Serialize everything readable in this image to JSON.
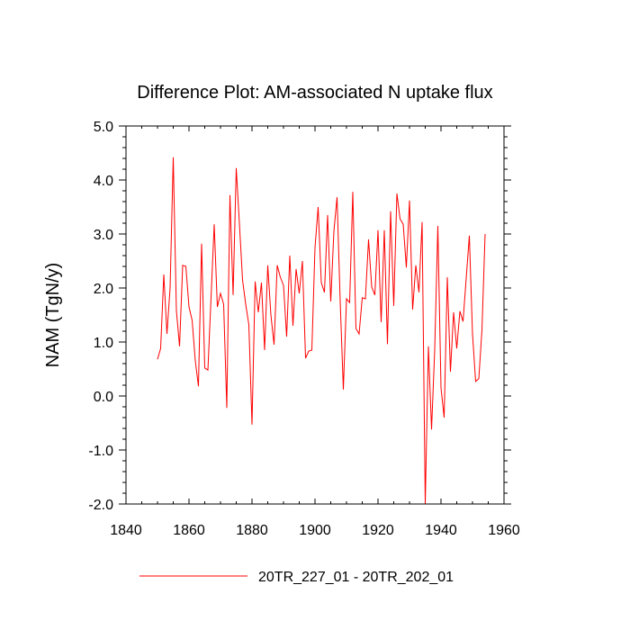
{
  "chart_data": {
    "type": "line",
    "title": "Difference Plot: AM-associated N uptake flux",
    "xlabel": "",
    "ylabel": "NAM  (TgN/y)",
    "xlim": [
      1840,
      1960
    ],
    "ylim": [
      -2.0,
      5.0
    ],
    "xticks": [
      1840,
      1860,
      1880,
      1900,
      1920,
      1940,
      1960
    ],
    "xtick_labels": [
      "1840",
      "1860",
      "1880",
      "1900",
      "1920",
      "1940",
      "1960"
    ],
    "yticks": [
      -2.0,
      -1.0,
      0.0,
      1.0,
      2.0,
      3.0,
      4.0,
      5.0
    ],
    "ytick_labels": [
      "-2.0",
      "-1.0",
      "0.0",
      "1.0",
      "2.0",
      "3.0",
      "4.0",
      "5.0"
    ],
    "grid": false,
    "legend_position": "bottom-center",
    "series": [
      {
        "name": "20TR_227_01 - 20TR_202_01",
        "color": "#ff0000",
        "x": [
          1850,
          1851,
          1852,
          1853,
          1854,
          1855,
          1856,
          1857,
          1858,
          1859,
          1860,
          1861,
          1862,
          1863,
          1864,
          1865,
          1866,
          1867,
          1868,
          1869,
          1870,
          1871,
          1872,
          1873,
          1874,
          1875,
          1876,
          1877,
          1878,
          1879,
          1880,
          1881,
          1882,
          1883,
          1884,
          1885,
          1886,
          1887,
          1888,
          1889,
          1890,
          1891,
          1892,
          1893,
          1894,
          1895,
          1896,
          1897,
          1898,
          1899,
          1900,
          1901,
          1902,
          1903,
          1904,
          1905,
          1906,
          1907,
          1908,
          1909,
          1910,
          1911,
          1912,
          1913,
          1914,
          1915,
          1916,
          1917,
          1918,
          1919,
          1920,
          1921,
          1922,
          1923,
          1924,
          1925,
          1926,
          1927,
          1928,
          1929,
          1930,
          1931,
          1932,
          1933,
          1934,
          1935,
          1936,
          1937,
          1938,
          1939,
          1940,
          1941,
          1942,
          1943,
          1944,
          1945,
          1946,
          1947,
          1948,
          1949,
          1950,
          1951,
          1952,
          1953,
          1954
        ],
        "values": [
          0.68,
          0.88,
          2.25,
          1.15,
          2.0,
          4.42,
          1.58,
          0.92,
          2.42,
          2.4,
          1.65,
          1.4,
          0.65,
          0.18,
          2.82,
          0.52,
          0.48,
          1.82,
          3.18,
          1.65,
          1.9,
          1.7,
          -0.22,
          3.72,
          1.87,
          4.22,
          3.2,
          2.15,
          1.7,
          1.32,
          -0.53,
          2.12,
          1.55,
          2.1,
          0.85,
          2.42,
          1.5,
          0.95,
          2.42,
          2.2,
          2.05,
          1.1,
          2.6,
          1.3,
          2.35,
          1.9,
          2.5,
          0.7,
          0.83,
          0.85,
          2.75,
          3.5,
          2.1,
          1.92,
          3.35,
          1.75,
          3.05,
          3.68,
          1.75,
          0.12,
          1.8,
          1.73,
          3.78,
          1.25,
          1.15,
          1.82,
          1.8,
          2.9,
          2.02,
          1.87,
          3.07,
          1.37,
          3.07,
          0.96,
          3.42,
          1.67,
          3.75,
          3.28,
          3.18,
          2.38,
          3.62,
          1.6,
          2.42,
          1.92,
          3.22,
          -2.0,
          0.92,
          -0.62,
          0.85,
          3.15,
          0.15,
          -0.4,
          2.2,
          0.45,
          1.55,
          0.88,
          1.57,
          1.38,
          2.18,
          2.97,
          1.15,
          0.27,
          0.32,
          1.22,
          3.0
        ]
      }
    ]
  }
}
